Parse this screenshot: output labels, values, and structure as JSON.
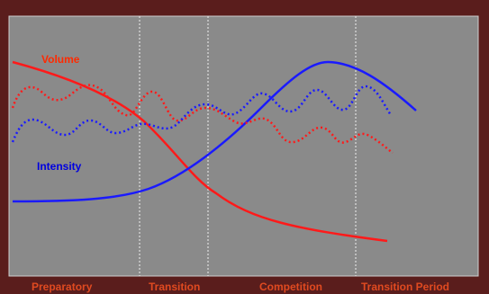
{
  "colors": {
    "background": "#5a1d1c",
    "panel": "#8a8a8a",
    "panel_border": "#cfcfcf",
    "volume": "#ff1a1a",
    "intensity": "#1a1aff",
    "volume_label": "#ff2a00",
    "intensity_label": "#0000e0",
    "phase_label": "#e04a20",
    "divider": "#f0f0f0"
  },
  "labels": {
    "volume": "Volume",
    "intensity": "Intensity"
  },
  "phases": [
    {
      "label": "Preparatory"
    },
    {
      "label": "Transition"
    },
    {
      "label": "Competition"
    },
    {
      "label": "Transition Period"
    }
  ],
  "lines": [
    {
      "name": "volume-line",
      "style": "solid",
      "color_key": "volume"
    },
    {
      "name": "intensity-line",
      "style": "solid",
      "color_key": "intensity"
    },
    {
      "name": "volume-actual-line",
      "style": "dotted",
      "color_key": "volume"
    },
    {
      "name": "intensity-actual-line",
      "style": "dotted",
      "color_key": "intensity"
    }
  ]
}
